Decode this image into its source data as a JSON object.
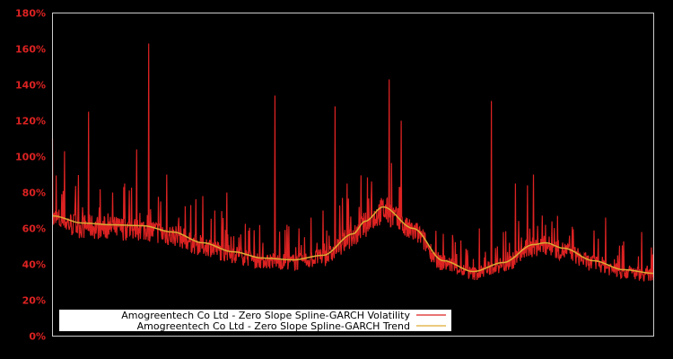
{
  "chart_data": {
    "type": "line",
    "title": "",
    "xlabel": "",
    "ylabel": "",
    "ylim": [
      0,
      180
    ],
    "yticks": [
      0,
      20,
      40,
      60,
      80,
      100,
      120,
      140,
      160,
      180
    ],
    "ytick_labels": [
      "0%",
      "20%",
      "40%",
      "60%",
      "80%",
      "100%",
      "120%",
      "140%",
      "160%",
      "180%"
    ],
    "grid": false,
    "legend_position": "lower left",
    "colors": {
      "background": "#000000",
      "axis_frame": "#cccccc",
      "tick_label": "#dd2222",
      "volatility": "#dd2222",
      "trend": "#ddaa33",
      "legend_bg": "#ffffff"
    },
    "series": [
      {
        "name": "Amogreentech Co Ltd - Zero Slope Spline-GARCH Volatility",
        "x": [
          0,
          0.01,
          0.02,
          0.03,
          0.04,
          0.05,
          0.06,
          0.07,
          0.08,
          0.09,
          0.1,
          0.11,
          0.12,
          0.13,
          0.14,
          0.15,
          0.16,
          0.17,
          0.18,
          0.19,
          0.2,
          0.21,
          0.22,
          0.23,
          0.24,
          0.25,
          0.26,
          0.27,
          0.28,
          0.29,
          0.3,
          0.31,
          0.32,
          0.33,
          0.34,
          0.35,
          0.36,
          0.37,
          0.38,
          0.39,
          0.4,
          0.41,
          0.42,
          0.43,
          0.44,
          0.45,
          0.46,
          0.47,
          0.48,
          0.49,
          0.5,
          0.51,
          0.52,
          0.53,
          0.54,
          0.55,
          0.56,
          0.57,
          0.58,
          0.59,
          0.6,
          0.61,
          0.62,
          0.63,
          0.64,
          0.65,
          0.66,
          0.67,
          0.68,
          0.69,
          0.7,
          0.71,
          0.72,
          0.73,
          0.74,
          0.75,
          0.76,
          0.77,
          0.78,
          0.79,
          0.8,
          0.81,
          0.82,
          0.83,
          0.84,
          0.85,
          0.86,
          0.87,
          0.88,
          0.89,
          0.9,
          0.91,
          0.92,
          0.93,
          0.94,
          0.95,
          0.96,
          0.97,
          0.98,
          0.99,
          1.0
        ],
        "values": [
          110,
          62,
          103,
          60,
          70,
          58,
          125,
          57,
          60,
          56,
          80,
          58,
          85,
          60,
          104,
          58,
          163,
          62,
          75,
          90,
          58,
          66,
          60,
          73,
          52,
          78,
          50,
          70,
          48,
          80,
          46,
          55,
          44,
          50,
          43,
          52,
          43,
          134,
          44,
          62,
          45,
          60,
          47,
          66,
          52,
          70,
          56,
          128,
          60,
          85,
          64,
          72,
          66,
          76,
          70,
          78,
          143,
          65,
          120,
          55,
          47,
          45,
          38,
          50,
          36,
          57,
          37,
          45,
          40,
          48,
          43,
          60,
          47,
          131,
          50,
          58,
          52,
          85,
          55,
          84,
          90,
          50,
          62,
          47,
          67,
          44,
          56,
          40,
          45,
          38,
          42,
          36,
          66,
          35,
          45,
          36,
          40,
          35,
          58,
          34,
          50
        ]
      },
      {
        "name": "Amogreentech Co Ltd - Zero Slope Spline-GARCH Trend",
        "x": [
          0,
          0.05,
          0.1,
          0.15,
          0.2,
          0.25,
          0.3,
          0.35,
          0.4,
          0.45,
          0.5,
          0.52,
          0.55,
          0.6,
          0.65,
          0.7,
          0.75,
          0.8,
          0.82,
          0.85,
          0.9,
          0.95,
          1.0
        ],
        "values": [
          67,
          63,
          62,
          61.5,
          58,
          52,
          47,
          43.5,
          42.5,
          45,
          57,
          64,
          72,
          60,
          42,
          36,
          41,
          51,
          52,
          49,
          42,
          37,
          35
        ]
      }
    ]
  },
  "legend": {
    "items": [
      {
        "label": "Amogreentech Co Ltd - Zero Slope Spline-GARCH Volatility",
        "color": "#dd2222"
      },
      {
        "label": "Amogreentech Co Ltd - Zero Slope Spline-GARCH Trend",
        "color": "#ddaa33"
      }
    ]
  }
}
